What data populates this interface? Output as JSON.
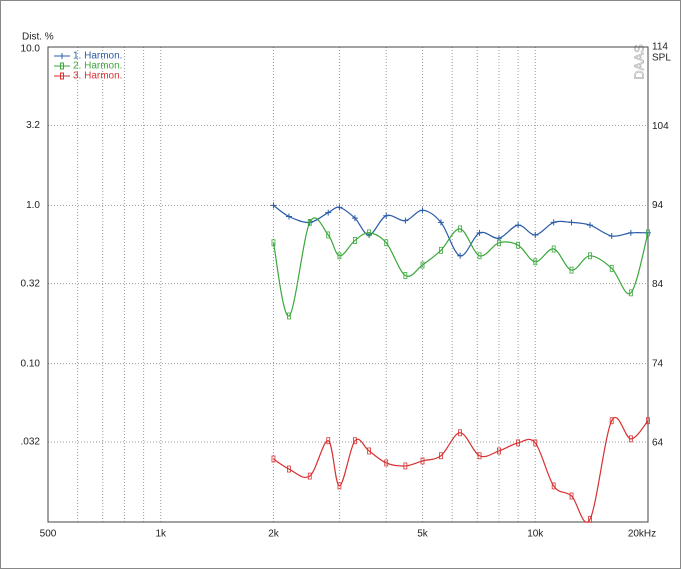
{
  "chart_data": {
    "type": "line",
    "y_label": "Dist. %",
    "y2_label": "SPL",
    "watermark": "DAAS",
    "log_x": true,
    "log_y": true,
    "grid": true,
    "legend": "top-left",
    "xlim": [
      500,
      20000
    ],
    "xticks": [
      500,
      {
        "value": 1000,
        "label": "1k"
      },
      {
        "value": 2000,
        "label": "2k"
      },
      {
        "value": 5000,
        "label": "5k"
      },
      {
        "value": 10000,
        "label": "10k"
      },
      {
        "value": 20000,
        "label": "20kHz"
      }
    ],
    "xminor": [
      600,
      700,
      800,
      900,
      3000,
      4000,
      6000,
      7000,
      8000,
      9000
    ],
    "ylim": [
      0.01,
      10
    ],
    "yticks": [
      {
        "value": 10,
        "label": "10.0"
      },
      3.2,
      {
        "value": 1,
        "label": "1.0"
      },
      0.32,
      {
        "value": 0.1,
        "label": "0.10"
      },
      {
        "value": 0.032,
        "label": ".032"
      }
    ],
    "y2lim": [
      54,
      114
    ],
    "y2ticks": [
      114,
      104,
      94,
      84,
      74,
      64
    ],
    "x": [
      2000,
      2200,
      2500,
      2800,
      3000,
      3300,
      3600,
      4000,
      4500,
      5000,
      5600,
      6300,
      7100,
      8000,
      9000,
      10000,
      11200,
      12500,
      14000,
      16000,
      18000,
      20000
    ],
    "series": [
      {
        "name": "1. Harmon.",
        "color": "#2a5ca8",
        "marker": "plus",
        "values": [
          1.0,
          0.85,
          0.78,
          0.9,
          0.97,
          0.83,
          0.65,
          0.86,
          0.8,
          0.93,
          0.78,
          0.48,
          0.67,
          0.62,
          0.75,
          0.65,
          0.78,
          0.78,
          0.75,
          0.64,
          0.67,
          0.67
        ]
      },
      {
        "name": "2. Harmon.",
        "color": "#3aa83a",
        "marker": "box",
        "values": [
          0.58,
          0.2,
          0.78,
          0.65,
          0.48,
          0.6,
          0.67,
          0.58,
          0.36,
          0.42,
          0.52,
          0.71,
          0.48,
          0.58,
          0.56,
          0.44,
          0.53,
          0.39,
          0.48,
          0.4,
          0.28,
          0.67
        ]
      },
      {
        "name": "3. Harmon.",
        "color": "#d93030",
        "marker": "box",
        "values": [
          0.025,
          0.0216,
          0.0195,
          0.0326,
          0.0169,
          0.0326,
          0.0281,
          0.0236,
          0.0226,
          0.0243,
          0.0262,
          0.0366,
          0.0262,
          0.0281,
          0.0316,
          0.0316,
          0.0169,
          0.0146,
          0.0104,
          0.0436,
          0.0335,
          0.0436
        ]
      }
    ]
  }
}
